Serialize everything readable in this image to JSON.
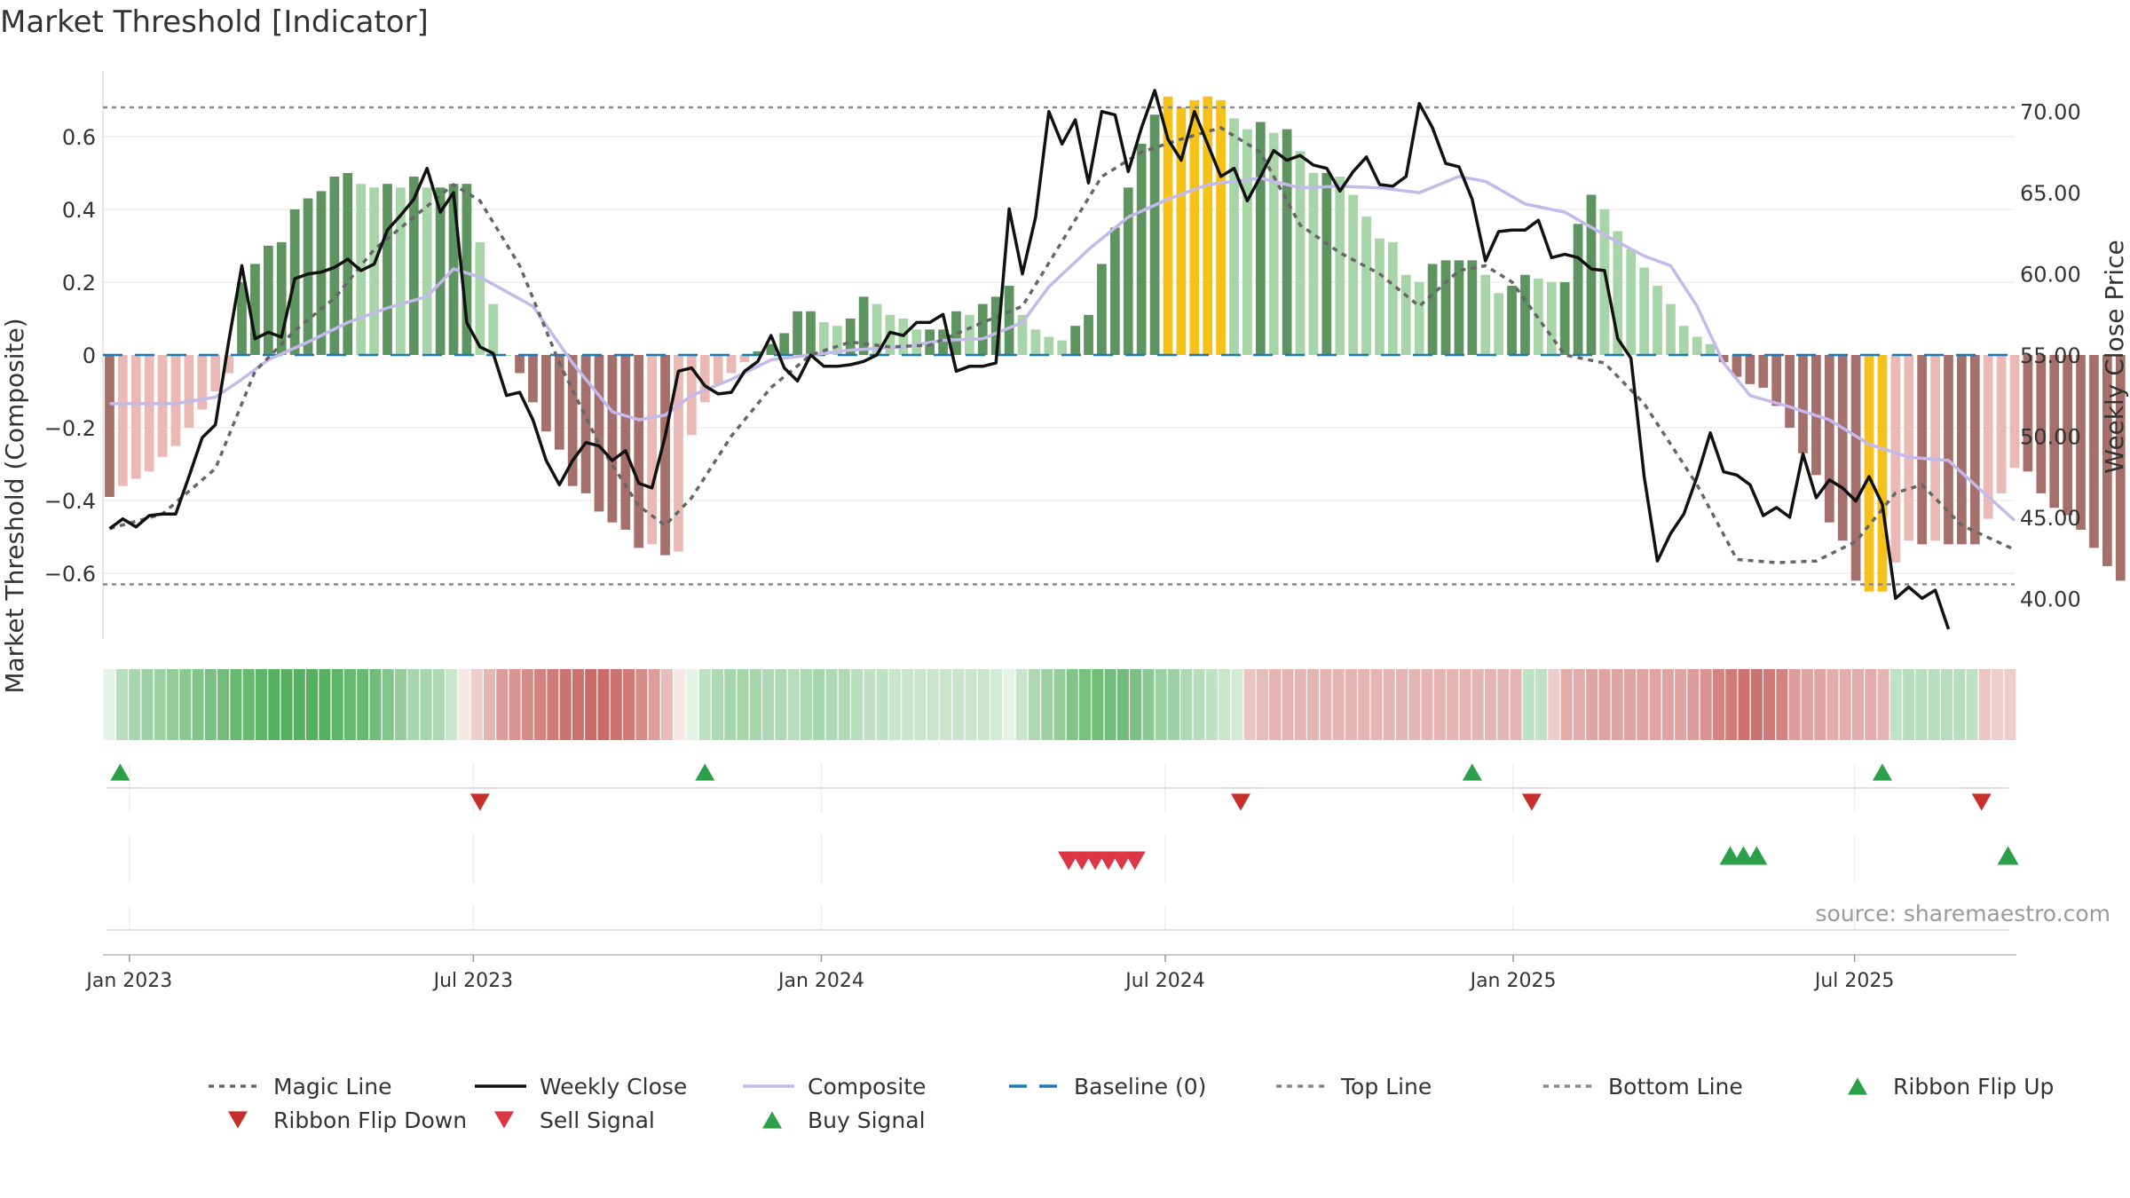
{
  "title": "Market Threshold [Indicator]",
  "source": "source: sharemaestro.com",
  "colors": {
    "bar_pos_strong": "#5e9460",
    "bar_pos_weak": "#a8d5a8",
    "bar_neg_strong": "#a5706c",
    "bar_neg_weak": "#eab9b5",
    "bar_extreme": "#f6c21a",
    "weekly_close": "#111111",
    "magic_line": "#666666",
    "composite": "#c3b9ea",
    "baseline": "#1f77b4",
    "threshold_line": "#888888",
    "flip_up": "#2ca048",
    "flip_down": "#c8302c",
    "buy": "#2ca048",
    "sell": "#dc3545",
    "ribbon_green": "#4cac57",
    "ribbon_red": "#c45a56"
  },
  "legend": {
    "items": [
      {
        "label": "Magic Line",
        "kind": "dotted",
        "color": "#666666"
      },
      {
        "label": "Weekly Close",
        "kind": "solid",
        "color": "#111111"
      },
      {
        "label": "Composite",
        "kind": "solid",
        "color": "#c3b9ea"
      },
      {
        "label": "Baseline (0)",
        "kind": "dashed",
        "color": "#1f77b4"
      },
      {
        "label": "Top Line",
        "kind": "dotted",
        "color": "#888888"
      },
      {
        "label": "Bottom Line",
        "kind": "dotted",
        "color": "#888888"
      },
      {
        "label": "Ribbon Flip Up",
        "kind": "tri-up",
        "color": "#2ca048"
      },
      {
        "label": "Ribbon Flip Down",
        "kind": "tri-down",
        "color": "#c8302c"
      },
      {
        "label": "Sell Signal",
        "kind": "tri-down",
        "color": "#dc3545"
      },
      {
        "label": "Buy Signal",
        "kind": "tri-up",
        "color": "#2ca048"
      }
    ]
  },
  "chart_data": {
    "type": "bar",
    "ylabel": "Market Threshold (Composite)",
    "y2label": "Weekly Close Price",
    "ylim": [
      -0.78,
      0.78
    ],
    "y2lim": [
      37.5,
      72.5
    ],
    "yticks": [
      -0.6,
      -0.4,
      -0.2,
      0,
      0.2,
      0.4,
      0.6
    ],
    "ytick_labels": [
      "−0.6",
      "−0.4",
      "−0.2",
      "0",
      "0.2",
      "0.4",
      "0.6"
    ],
    "y2ticks": [
      40,
      45,
      50,
      55,
      60,
      65,
      70
    ],
    "y2tick_labels": [
      "40.00",
      "45.00",
      "50.00",
      "55.00",
      "60.00",
      "65.00",
      "70.00"
    ],
    "x_range_weeks": [
      0,
      144.5
    ],
    "x_tick_weeks": [
      2,
      28,
      54.3,
      80.3,
      106.6,
      132.4
    ],
    "x_tick_labels": [
      "Jan 2023",
      "Jul 2023",
      "Jan 2024",
      "Jul 2024",
      "Jan 2025",
      "Jul 2025"
    ],
    "top_line": 0.68,
    "bottom_line": -0.63,
    "baseline": 0,
    "composite_bars": [
      -0.39,
      -0.36,
      -0.34,
      -0.32,
      -0.28,
      -0.25,
      -0.2,
      -0.15,
      -0.1,
      -0.05,
      0.2,
      0.25,
      0.3,
      0.31,
      0.4,
      0.43,
      0.45,
      0.49,
      0.5,
      0.47,
      0.46,
      0.47,
      0.46,
      0.49,
      0.46,
      0.46,
      0.47,
      0.47,
      0.31,
      0.14,
      0.0,
      -0.05,
      -0.13,
      -0.21,
      -0.26,
      -0.36,
      -0.38,
      -0.43,
      -0.46,
      -0.48,
      -0.53,
      -0.52,
      -0.55,
      -0.54,
      -0.22,
      -0.13,
      -0.08,
      -0.05,
      -0.02,
      0.01,
      0.03,
      0.06,
      0.12,
      0.12,
      0.09,
      0.08,
      0.1,
      0.16,
      0.14,
      0.11,
      0.1,
      0.07,
      0.07,
      0.07,
      0.12,
      0.11,
      0.14,
      0.16,
      0.19,
      0.11,
      0.07,
      0.05,
      0.04,
      0.08,
      0.11,
      0.25,
      0.35,
      0.46,
      0.58,
      0.66,
      0.71,
      0.68,
      0.7,
      0.71,
      0.7,
      0.65,
      0.62,
      0.64,
      0.61,
      0.62,
      0.56,
      0.5,
      0.5,
      0.49,
      0.44,
      0.38,
      0.32,
      0.31,
      0.22,
      0.2,
      0.25,
      0.26,
      0.26,
      0.26,
      0.22,
      0.17,
      0.19,
      0.22,
      0.21,
      0.2,
      0.2,
      0.36,
      0.44,
      0.4,
      0.34,
      0.29,
      0.24,
      0.19,
      0.14,
      0.08,
      0.05,
      0.03,
      -0.02,
      -0.06,
      -0.08,
      -0.09,
      -0.14,
      -0.2,
      -0.27,
      -0.33,
      -0.46,
      -0.51,
      -0.62,
      -0.65,
      -0.65,
      -0.57,
      -0.51,
      -0.52,
      -0.51,
      -0.52,
      -0.52,
      -0.52,
      -0.45,
      -0.38,
      -0.31,
      -0.32,
      -0.38,
      -0.42,
      -0.44,
      -0.48,
      -0.53,
      -0.58,
      -0.62
    ]
  },
  "weekly_close": [
    [
      0,
      44.3
    ],
    [
      1,
      44.9
    ],
    [
      2,
      44.4
    ],
    [
      3,
      45.1
    ],
    [
      4,
      45.2
    ],
    [
      5,
      45.2
    ],
    [
      6,
      47.5
    ],
    [
      7,
      49.9
    ],
    [
      8,
      50.7
    ],
    [
      9,
      55.8
    ],
    [
      10,
      60.5
    ],
    [
      11,
      56.0
    ],
    [
      12,
      56.4
    ],
    [
      13,
      56.1
    ],
    [
      14,
      59.7
    ],
    [
      15,
      60.0
    ],
    [
      16,
      60.1
    ],
    [
      17,
      60.4
    ],
    [
      18,
      60.9
    ],
    [
      19,
      60.2
    ],
    [
      20,
      60.6
    ],
    [
      21,
      62.7
    ],
    [
      22,
      63.6
    ],
    [
      23,
      64.6
    ],
    [
      24,
      66.5
    ],
    [
      25,
      63.8
    ],
    [
      26,
      65.0
    ],
    [
      27,
      57.0
    ],
    [
      28,
      55.5
    ],
    [
      29,
      55.1
    ],
    [
      30,
      52.5
    ],
    [
      31,
      52.7
    ],
    [
      32,
      51.0
    ],
    [
      33,
      48.5
    ],
    [
      34,
      47.0
    ],
    [
      35,
      48.5
    ],
    [
      36,
      49.6
    ],
    [
      37,
      49.4
    ],
    [
      38,
      48.5
    ],
    [
      39,
      49.1
    ],
    [
      40,
      47.1
    ],
    [
      41,
      46.8
    ],
    [
      42,
      50.0
    ],
    [
      43,
      54.0
    ],
    [
      44,
      54.2
    ],
    [
      45,
      53.1
    ],
    [
      46,
      52.6
    ],
    [
      47,
      52.7
    ],
    [
      48,
      54.0
    ],
    [
      49,
      54.6
    ],
    [
      50,
      56.2
    ],
    [
      51,
      54.2
    ],
    [
      52,
      53.4
    ],
    [
      53,
      55.0
    ],
    [
      54,
      54.3
    ],
    [
      55,
      54.3
    ],
    [
      56,
      54.4
    ],
    [
      57,
      54.6
    ],
    [
      58,
      55.0
    ],
    [
      59,
      56.4
    ],
    [
      60,
      56.2
    ],
    [
      61,
      57.0
    ],
    [
      62,
      57.0
    ],
    [
      63,
      57.5
    ],
    [
      64,
      54.0
    ],
    [
      65,
      54.3
    ],
    [
      66,
      54.3
    ],
    [
      67,
      54.5
    ],
    [
      68,
      64.0
    ],
    [
      69,
      60.0
    ],
    [
      70,
      63.5
    ],
    [
      71,
      70.0
    ],
    [
      72,
      68.0
    ],
    [
      73,
      69.5
    ],
    [
      74,
      65.6
    ],
    [
      75,
      70.0
    ],
    [
      76,
      69.8
    ],
    [
      77,
      66.3
    ],
    [
      78,
      69.0
    ],
    [
      79,
      71.3
    ],
    [
      80,
      68.3
    ],
    [
      81,
      67.0
    ],
    [
      82,
      70.0
    ],
    [
      83,
      68.0
    ],
    [
      84,
      66.0
    ],
    [
      85,
      66.5
    ],
    [
      86,
      64.5
    ],
    [
      87,
      66.0
    ],
    [
      88,
      67.6
    ],
    [
      89,
      67.0
    ],
    [
      90,
      67.3
    ],
    [
      91,
      66.7
    ],
    [
      92,
      66.5
    ],
    [
      93,
      65.1
    ],
    [
      94,
      66.3
    ],
    [
      95,
      67.2
    ],
    [
      96,
      65.5
    ],
    [
      97,
      65.4
    ],
    [
      98,
      66.0
    ],
    [
      99,
      70.5
    ],
    [
      100,
      69.0
    ],
    [
      101,
      66.8
    ],
    [
      102,
      66.6
    ],
    [
      103,
      64.6
    ],
    [
      104,
      60.8
    ],
    [
      105,
      62.6
    ],
    [
      106,
      62.7
    ],
    [
      107,
      62.7
    ],
    [
      108,
      63.3
    ],
    [
      109,
      61.0
    ],
    [
      110,
      61.2
    ],
    [
      111,
      61.0
    ],
    [
      112,
      60.3
    ],
    [
      113,
      60.2
    ],
    [
      114,
      56.0
    ],
    [
      115,
      54.8
    ],
    [
      116,
      47.5
    ],
    [
      117,
      42.3
    ],
    [
      118,
      44.0
    ],
    [
      119,
      45.2
    ],
    [
      120,
      47.5
    ],
    [
      121,
      50.2
    ],
    [
      122,
      47.8
    ],
    [
      123,
      47.6
    ],
    [
      124,
      47.0
    ],
    [
      125,
      45.1
    ],
    [
      126,
      45.6
    ],
    [
      127,
      45.0
    ],
    [
      128,
      48.9
    ],
    [
      129,
      46.2
    ],
    [
      130,
      47.3
    ],
    [
      131,
      46.8
    ],
    [
      132,
      46.0
    ],
    [
      133,
      47.5
    ],
    [
      134,
      45.8
    ],
    [
      135,
      40.0
    ],
    [
      136,
      40.7
    ],
    [
      137,
      40.0
    ],
    [
      138,
      40.5
    ],
    [
      139,
      38.1
    ]
  ],
  "magic_line": [
    [
      0,
      44.3
    ],
    [
      4,
      45.2
    ],
    [
      8,
      48.0
    ],
    [
      11,
      54.0
    ],
    [
      14,
      56.5
    ],
    [
      17,
      58.5
    ],
    [
      20,
      61.5
    ],
    [
      23,
      63.5
    ],
    [
      26,
      65.5
    ],
    [
      28,
      64.5
    ],
    [
      31,
      60.5
    ],
    [
      34,
      54.5
    ],
    [
      37,
      49.5
    ],
    [
      40,
      45.7
    ],
    [
      42,
      44.5
    ],
    [
      44,
      46.2
    ],
    [
      47,
      50.0
    ],
    [
      50,
      53.0
    ],
    [
      53,
      55.0
    ],
    [
      56,
      55.8
    ],
    [
      59,
      55.5
    ],
    [
      62,
      55.6
    ],
    [
      66,
      57.0
    ],
    [
      69,
      58.0
    ],
    [
      72,
      62.0
    ],
    [
      75,
      66.0
    ],
    [
      78,
      67.5
    ],
    [
      81,
      68.3
    ],
    [
      84,
      69.0
    ],
    [
      87,
      67.5
    ],
    [
      90,
      63.0
    ],
    [
      93,
      61.3
    ],
    [
      96,
      60.0
    ],
    [
      99,
      58.0
    ],
    [
      102,
      60.2
    ],
    [
      104,
      60.5
    ],
    [
      106,
      59.5
    ],
    [
      110,
      55.0
    ],
    [
      113,
      54.5
    ],
    [
      116,
      52.0
    ],
    [
      120,
      47.0
    ],
    [
      123,
      42.4
    ],
    [
      126,
      42.2
    ],
    [
      129,
      42.3
    ],
    [
      132,
      43.5
    ],
    [
      135,
      46.5
    ],
    [
      137,
      47.0
    ],
    [
      140,
      44.5
    ],
    [
      144,
      43.0
    ]
  ],
  "composite_line": [
    [
      0,
      52.0
    ],
    [
      5,
      52.0
    ],
    [
      8,
      52.4
    ],
    [
      10,
      53.5
    ],
    [
      12,
      54.7
    ],
    [
      15,
      55.8
    ],
    [
      18,
      57.0
    ],
    [
      21,
      57.9
    ],
    [
      24,
      58.6
    ],
    [
      26,
      60.3
    ],
    [
      28,
      59.8
    ],
    [
      32,
      58.0
    ],
    [
      35,
      54.5
    ],
    [
      38,
      51.5
    ],
    [
      40,
      51.0
    ],
    [
      42,
      51.3
    ],
    [
      44,
      52.5
    ],
    [
      47,
      53.5
    ],
    [
      50,
      54.7
    ],
    [
      53,
      55.0
    ],
    [
      56,
      55.3
    ],
    [
      60,
      55.5
    ],
    [
      63,
      55.9
    ],
    [
      66,
      56.0
    ],
    [
      69,
      57.0
    ],
    [
      71,
      59.2
    ],
    [
      74,
      61.5
    ],
    [
      77,
      63.5
    ],
    [
      80,
      64.6
    ],
    [
      83,
      65.5
    ],
    [
      87,
      65.9
    ],
    [
      90,
      65.3
    ],
    [
      93,
      65.4
    ],
    [
      96,
      65.3
    ],
    [
      99,
      65.0
    ],
    [
      102,
      66.0
    ],
    [
      104,
      65.7
    ],
    [
      107,
      64.3
    ],
    [
      110,
      63.8
    ],
    [
      113,
      62.4
    ],
    [
      116,
      61.1
    ],
    [
      118,
      60.5
    ],
    [
      120,
      58.0
    ],
    [
      122,
      54.5
    ],
    [
      124,
      52.5
    ],
    [
      127,
      51.8
    ],
    [
      130,
      51.0
    ],
    [
      133,
      49.5
    ],
    [
      136,
      48.7
    ],
    [
      139,
      48.5
    ],
    [
      141,
      47.0
    ],
    [
      144,
      44.8
    ]
  ],
  "ribbon_levels": [
    0.15,
    0.4,
    0.5,
    0.55,
    0.55,
    0.6,
    0.65,
    0.7,
    0.75,
    0.8,
    0.85,
    0.85,
    0.9,
    0.95,
    0.95,
    0.95,
    0.95,
    0.95,
    0.9,
    0.85,
    0.85,
    0.8,
    0.7,
    0.6,
    0.5,
    0.5,
    0.45,
    0.3,
    -0.15,
    -0.3,
    -0.45,
    -0.6,
    -0.65,
    -0.7,
    -0.75,
    -0.8,
    -0.85,
    -0.85,
    -0.9,
    -0.9,
    -0.85,
    -0.8,
    -0.7,
    -0.6,
    -0.4,
    -0.15,
    0.15,
    0.35,
    0.45,
    0.5,
    0.5,
    0.5,
    0.45,
    0.45,
    0.4,
    0.45,
    0.5,
    0.45,
    0.45,
    0.4,
    0.35,
    0.35,
    0.3,
    0.3,
    0.3,
    0.3,
    0.3,
    0.3,
    0.3,
    0.3,
    0.25,
    0.15,
    0.3,
    0.45,
    0.55,
    0.6,
    0.7,
    0.75,
    0.8,
    0.8,
    0.8,
    0.75,
    0.65,
    0.55,
    0.55,
    0.45,
    0.4,
    0.35,
    0.3,
    0.25,
    -0.35,
    -0.4,
    -0.45,
    -0.45,
    -0.45,
    -0.45,
    -0.45,
    -0.45,
    -0.45,
    -0.45,
    -0.45,
    -0.45,
    -0.45,
    -0.45,
    -0.45,
    -0.45,
    -0.45,
    -0.45,
    -0.45,
    -0.45,
    -0.45,
    -0.45,
    0.35,
    0.35,
    -0.3,
    -0.5,
    -0.5,
    -0.55,
    -0.55,
    -0.55,
    -0.55,
    -0.55,
    -0.55,
    -0.55,
    -0.55,
    -0.6,
    -0.65,
    -0.75,
    -0.8,
    -0.85,
    -0.85,
    -0.8,
    -0.75,
    -0.6,
    -0.55,
    -0.55,
    -0.5,
    -0.5,
    -0.5,
    -0.5,
    -0.45,
    0.35,
    0.4,
    0.4,
    0.4,
    0.4,
    0.4,
    0.35,
    -0.35,
    -0.3,
    -0.3
  ],
  "ribbon_flip_up_weeks": [
    0.8,
    45,
    103,
    134
  ],
  "ribbon_flip_down_weeks": [
    28,
    85.5,
    107.5,
    141.5
  ],
  "sell_signal_weeks": [
    72.5,
    73.5,
    74.5,
    75.5,
    76.5,
    77.5
  ],
  "buy_signal_weeks": [
    122.5,
    123.5,
    124.5,
    143.5
  ]
}
